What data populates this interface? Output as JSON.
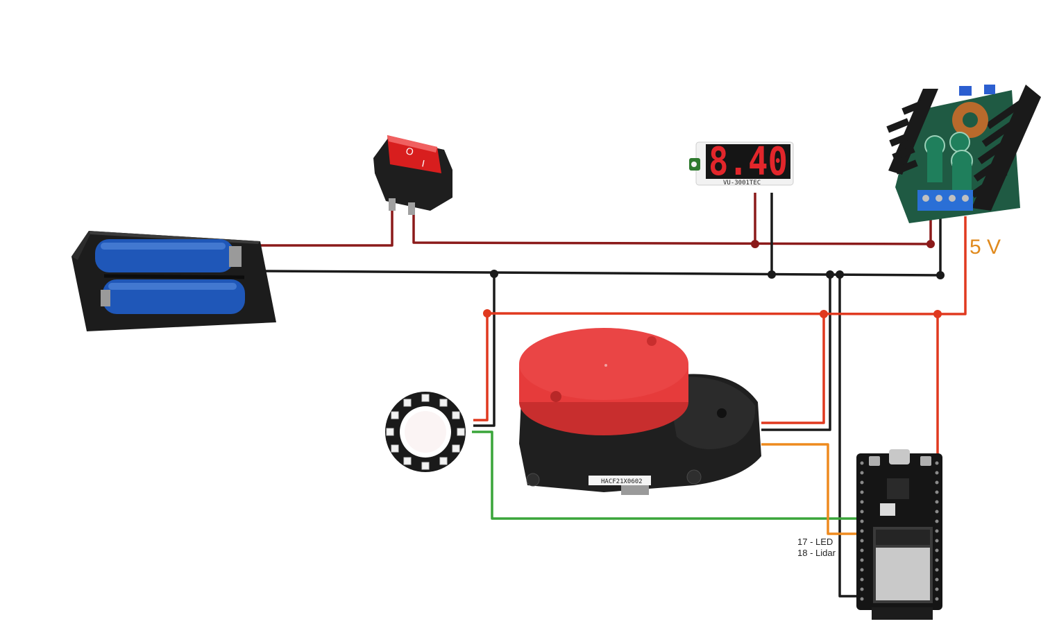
{
  "labels": {
    "voltage": "5 V",
    "pin_led": "17 - LED",
    "pin_lidar": "18 - Lidar",
    "display_reading": "8.40",
    "lidar_serial": "HACF21X0602"
  },
  "colors": {
    "wire_battery_positive": "#8b1a1a",
    "wire_ground": "#1a1a1a",
    "wire_5v": "#e0391f",
    "wire_led_data": "#3aa53a",
    "wire_lidar_data": "#ee8a1e",
    "battery_cell": "#1f57b8",
    "switch_red": "#d81e1e",
    "lidar_cap": "#e63b3b"
  },
  "components": [
    "battery-holder",
    "rocker-switch",
    "voltmeter-display",
    "buck-converter",
    "led-ring",
    "lidar-sensor",
    "esp32-board"
  ]
}
